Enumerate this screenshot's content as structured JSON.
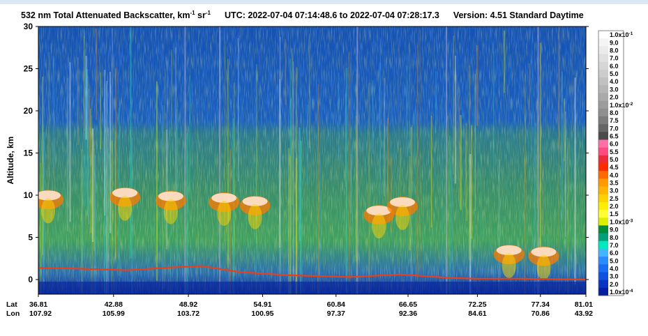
{
  "chart_data": {
    "type": "heatmap",
    "title": {
      "main": "532 nm Total Attenuated Backscatter, km",
      "unit_exp1": "-1",
      "unit_mid": " sr",
      "unit_exp2": "-1",
      "utc": "UTC:  2022-07-04 07:14:48.6  to  2022-07-04 07:28:17.3",
      "version": "Version: 4.51  Standard  Daytime"
    },
    "ylabel": "Altitude, km",
    "ylim": [
      -1.5,
      30
    ],
    "yticks": [
      "30",
      "25",
      "20",
      "15",
      "10",
      "5",
      "0"
    ],
    "yvalues": [
      30,
      25,
      20,
      15,
      10,
      5,
      0
    ],
    "xaxis": {
      "lat_label": "Lat",
      "lon_label": "Lon",
      "lat": [
        "36.81",
        "42.88",
        "48.92",
        "54.91",
        "60.84",
        "66.65",
        "72.25",
        "77.34",
        "81.01"
      ],
      "lon": [
        "107.92",
        "105.99",
        "103.72",
        "100.95",
        "97.37",
        "92.36",
        "84.61",
        "70.86",
        "43.92"
      ]
    },
    "colorbar": {
      "labels": [
        "1.0x10-1",
        "9.0",
        "8.0",
        "7.0",
        "6.0",
        "5.0",
        "4.0",
        "3.0",
        "2.0",
        "1.0x10-2",
        "8.0",
        "7.5",
        "7.0",
        "6.5",
        "6.0",
        "5.5",
        "5.0",
        "4.5",
        "4.0",
        "3.5",
        "3.0",
        "2.5",
        "2.0",
        "1.5",
        "1.0x10-3",
        "9.0",
        "8.0",
        "7.0",
        "6.0",
        "5.0",
        "4.0",
        "3.0",
        "2.0",
        "1.0x10-4"
      ],
      "colors": [
        "#ffffff",
        "#f4f4f4",
        "#ebebeb",
        "#e0e0e0",
        "#d6d6d6",
        "#cccccc",
        "#c1c1c1",
        "#b6b6b6",
        "#aaaaaa",
        "#9d9d9d",
        "#8f8f8f",
        "#7c7c7c",
        "#666666",
        "#4a4a4a",
        "#ff6fa6",
        "#ff4a7f",
        "#ee2a3a",
        "#ff2a00",
        "#ff6a00",
        "#ff9a00",
        "#ffb400",
        "#ffd200",
        "#ffee00",
        "#ffff33",
        "#dbf000",
        "#008c3a",
        "#00a07a",
        "#00e8c0",
        "#44b4ff",
        "#2b8cff",
        "#1a6cf4",
        "#1050e0",
        "#0834c4",
        "#041e9c"
      ]
    },
    "clouds": [
      {
        "lat": 37.6,
        "alt": 10.3
      },
      {
        "lat": 43.8,
        "alt": 10.6
      },
      {
        "lat": 47.5,
        "alt": 10.2
      },
      {
        "lat": 51.8,
        "alt": 10.0
      },
      {
        "lat": 54.3,
        "alt": 9.6
      },
      {
        "lat": 64.3,
        "alt": 8.5
      },
      {
        "lat": 66.2,
        "alt": 9.5
      },
      {
        "lat": 74.8,
        "alt": 3.8
      },
      {
        "lat": 77.6,
        "alt": 3.6
      }
    ],
    "surface": [
      {
        "lat": 36.81,
        "alt": 1.4
      },
      {
        "lat": 40.0,
        "alt": 1.3
      },
      {
        "lat": 44.0,
        "alt": 1.1
      },
      {
        "lat": 47.0,
        "alt": 1.4
      },
      {
        "lat": 50.0,
        "alt": 1.6
      },
      {
        "lat": 53.0,
        "alt": 0.9
      },
      {
        "lat": 57.0,
        "alt": 0.5
      },
      {
        "lat": 62.0,
        "alt": 0.3
      },
      {
        "lat": 66.0,
        "alt": 0.6
      },
      {
        "lat": 70.0,
        "alt": 0.2
      },
      {
        "lat": 72.25,
        "alt": 0.1
      },
      {
        "lat": 76.0,
        "alt": 0.1
      },
      {
        "lat": 81.01,
        "alt": 0.0
      }
    ]
  }
}
